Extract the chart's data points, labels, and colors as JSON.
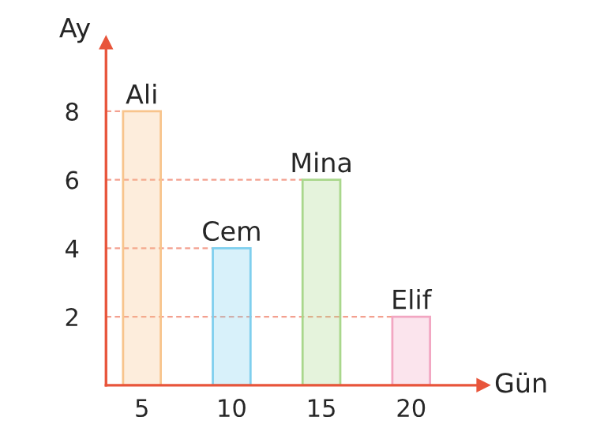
{
  "chart_data": {
    "type": "bar",
    "xlabel": "Gün",
    "ylabel": "Ay",
    "x": [
      5,
      10,
      15,
      20
    ],
    "values": [
      8,
      4,
      6,
      2
    ],
    "colors": [
      "#f8c48c",
      "#7fcfee",
      "#a9d78c",
      "#f2a6c2"
    ],
    "xlim": [
      3,
      24
    ],
    "ylim": [
      0,
      10
    ],
    "xticks": [
      5,
      10,
      15,
      20
    ],
    "yticks": [
      2,
      4,
      6,
      8
    ],
    "annotations": [
      {
        "text": "Ali",
        "x": 5,
        "y": 8
      },
      {
        "text": "Cem",
        "x": 10,
        "y": 4
      },
      {
        "text": "Mina",
        "x": 15,
        "y": 6
      },
      {
        "text": "Elif",
        "x": 20,
        "y": 2
      }
    ]
  }
}
